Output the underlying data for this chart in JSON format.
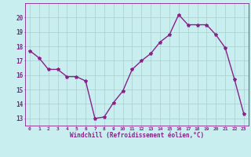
{
  "x": [
    0,
    1,
    2,
    3,
    4,
    5,
    6,
    7,
    8,
    9,
    10,
    11,
    12,
    13,
    14,
    15,
    16,
    17,
    18,
    19,
    20,
    21,
    22,
    23
  ],
  "y": [
    17.7,
    17.2,
    16.4,
    16.4,
    15.9,
    15.9,
    15.6,
    13.0,
    13.1,
    14.1,
    14.9,
    16.4,
    17.0,
    17.5,
    18.3,
    18.8,
    20.2,
    19.5,
    19.5,
    19.5,
    18.8,
    17.9,
    15.7,
    13.3
  ],
  "line_color": "#882288",
  "marker": "*",
  "marker_size": 3,
  "bg_color": "#c8eef0",
  "grid_color": "#aacccc",
  "xlabel": "Windchill (Refroidissement éolien,°C)",
  "xlabel_color": "#882288",
  "tick_color": "#882288",
  "ylim": [
    12.5,
    21.0
  ],
  "xlim": [
    -0.5,
    23.5
  ],
  "yticks": [
    13,
    14,
    15,
    16,
    17,
    18,
    19,
    20
  ],
  "xticks": [
    0,
    1,
    2,
    3,
    4,
    5,
    6,
    7,
    8,
    9,
    10,
    11,
    12,
    13,
    14,
    15,
    16,
    17,
    18,
    19,
    20,
    21,
    22,
    23
  ]
}
